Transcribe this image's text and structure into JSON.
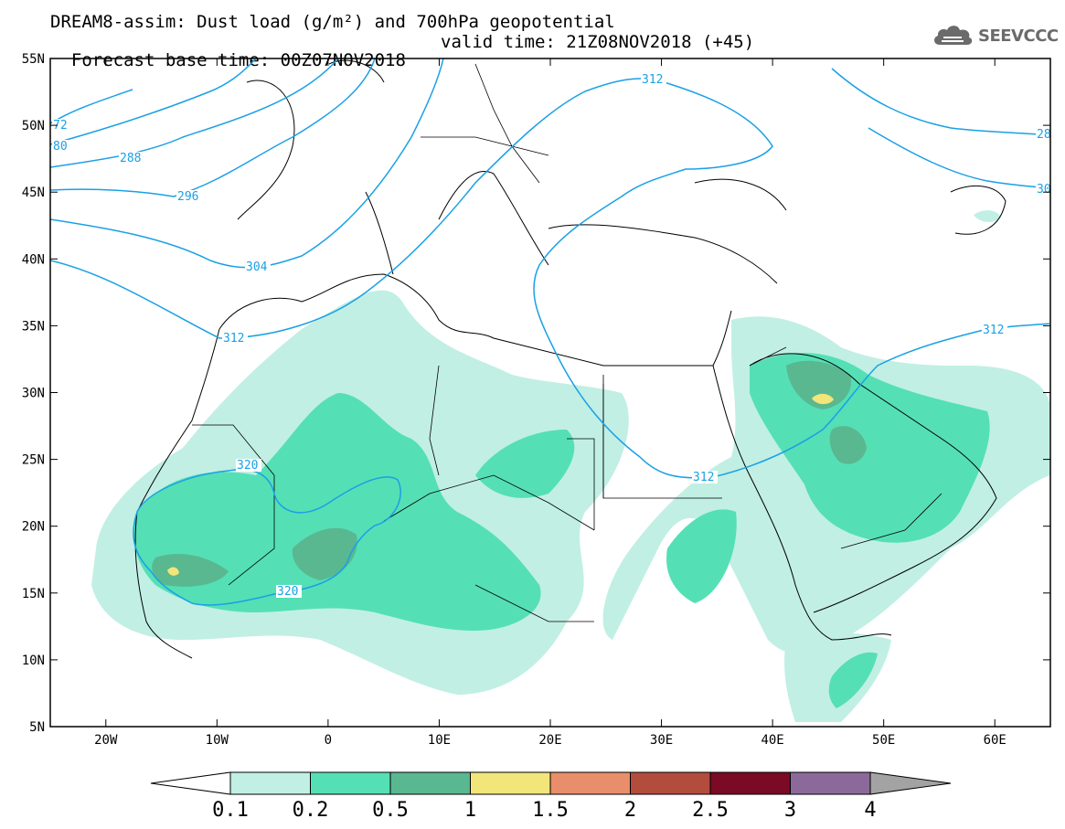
{
  "title": {
    "line1": "DREAM8-assim: Dust load (g/m²) and 700hPa geopotential",
    "line2_base": "Forecast base time: 00Z07NOV2018",
    "line2_valid": "valid time: 21Z08NOV2018 (+45)"
  },
  "logo": {
    "text": "SEEVCCC",
    "icon": "cloud-icon",
    "color": "#6b6b6b"
  },
  "axes": {
    "lon_ticks": [
      "20W",
      "10W",
      "0",
      "10E",
      "20E",
      "30E",
      "40E",
      "50E",
      "60E"
    ],
    "lon_values": [
      -20,
      -10,
      0,
      10,
      20,
      30,
      40,
      50,
      60
    ],
    "lat_ticks": [
      "55N",
      "50N",
      "45N",
      "40N",
      "35N",
      "30N",
      "25N",
      "20N",
      "15N",
      "10N",
      "5N"
    ],
    "lat_values": [
      55,
      50,
      45,
      40,
      35,
      30,
      25,
      20,
      15,
      10,
      5
    ],
    "lon_range": [
      -25,
      65
    ],
    "lat_range": [
      5,
      55
    ]
  },
  "colorbar": {
    "labels": [
      "0.1",
      "0.2",
      "0.5",
      "1",
      "1.5",
      "2",
      "2.5",
      "3",
      "4"
    ],
    "colors": [
      "#c1efe4",
      "#55dfb5",
      "#5ab891",
      "#f2e57a",
      "#e88e6a",
      "#b24c3c",
      "#7a0a26",
      "#8b6a9b",
      "#a3a3a3"
    ]
  },
  "contours": {
    "color": "#1aa0e6",
    "labels": [
      "72",
      "80",
      "288",
      "296",
      "304",
      "312",
      "312",
      "312",
      "312",
      "320",
      "320",
      "28",
      "30"
    ]
  }
}
